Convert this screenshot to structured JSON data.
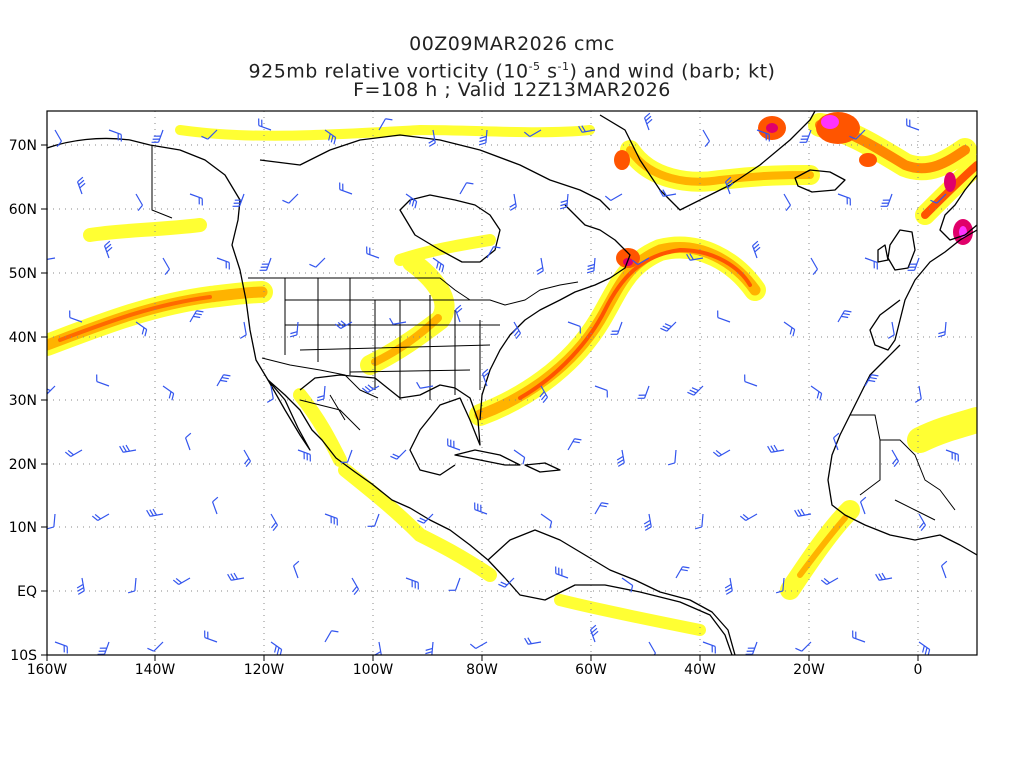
{
  "title": {
    "line1": "00Z09MAR2026 cmc",
    "line2_pre": "925mb relative vorticity (10",
    "line2_exp1": "-5",
    "line2_mid": " s",
    "line2_exp2": "-1",
    "line2_post": ") and wind (barb; kt)",
    "line3": "F=108 h ; Valid 12Z13MAR2026"
  },
  "axes": {
    "lon_labels": [
      "160W",
      "140W",
      "120W",
      "100W",
      "80W",
      "60W",
      "40W",
      "20W",
      "0"
    ],
    "lat_labels": [
      "70N",
      "60N",
      "50N",
      "40N",
      "30N",
      "20N",
      "10N",
      "EQ",
      "10S"
    ]
  },
  "colors": {
    "vort_light": "#ffff33",
    "vort_mid": "#ffb300",
    "vort_strong": "#ff5500",
    "vort_peak": "#e0006a",
    "vort_max": "#ff33ff",
    "barb": "#3355ee",
    "coast": "#000000",
    "grid": "#888888"
  },
  "icons": {
    "wind_barb": "wind-barb-icon"
  }
}
